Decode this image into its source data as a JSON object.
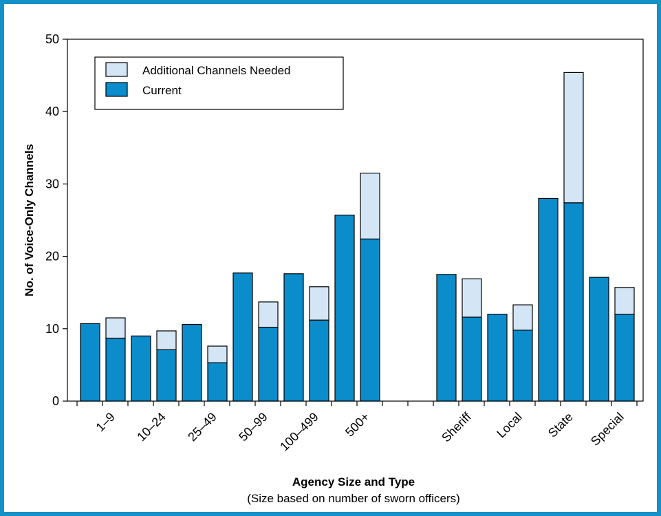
{
  "chart_data": {
    "type": "bar",
    "stacked": true,
    "title": "",
    "ylabel": "No. of Voice-Only Channels",
    "xlabel": "Agency Size and Type",
    "xlabel_sub": "(Size based on number of sworn officers)",
    "ylim": [
      0,
      50
    ],
    "yticks": [
      0,
      10,
      20,
      30,
      40,
      50
    ],
    "grid": false,
    "legend_position": "top-left",
    "colors": {
      "current": "#0b8ccb",
      "additional": "#d4e6f5",
      "frame": "#1591c8",
      "stroke": "#000000"
    },
    "legend": [
      "Additional Channels Needed",
      "Current"
    ],
    "groups": [
      {
        "label": "1–9",
        "bars": [
          {
            "current": 10.7,
            "additional": 0
          },
          {
            "current": 8.7,
            "additional": 2.8
          }
        ]
      },
      {
        "label": "10–24",
        "bars": [
          {
            "current": 9.0,
            "additional": 0
          },
          {
            "current": 7.1,
            "additional": 2.6
          }
        ]
      },
      {
        "label": "25–49",
        "bars": [
          {
            "current": 10.6,
            "additional": 0
          },
          {
            "current": 5.3,
            "additional": 2.3
          }
        ]
      },
      {
        "label": "50–99",
        "bars": [
          {
            "current": 17.7,
            "additional": 0
          },
          {
            "current": 10.2,
            "additional": 3.5
          }
        ]
      },
      {
        "label": "100–499",
        "bars": [
          {
            "current": 17.6,
            "additional": 0
          },
          {
            "current": 11.2,
            "additional": 4.6
          }
        ]
      },
      {
        "label": "500+",
        "bars": [
          {
            "current": 25.7,
            "additional": 0
          },
          {
            "current": 22.4,
            "additional": 9.1
          }
        ]
      },
      {
        "label": "Sheriff",
        "bars": [
          {
            "current": 17.5,
            "additional": 0
          },
          {
            "current": 11.6,
            "additional": 5.3
          }
        ]
      },
      {
        "label": "Local",
        "bars": [
          {
            "current": 12.0,
            "additional": 0
          },
          {
            "current": 9.8,
            "additional": 3.5
          }
        ]
      },
      {
        "label": "State",
        "bars": [
          {
            "current": 28.0,
            "additional": 0
          },
          {
            "current": 27.4,
            "additional": 18.0
          }
        ]
      },
      {
        "label": "Special",
        "bars": [
          {
            "current": 17.1,
            "additional": 0
          },
          {
            "current": 12.0,
            "additional": 3.7
          }
        ]
      }
    ]
  }
}
